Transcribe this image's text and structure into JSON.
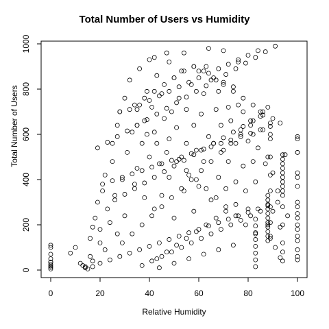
{
  "chart_data": {
    "type": "scatter",
    "title": "Total Number of Users vs Humidity",
    "xlabel": "Relative Humidity",
    "ylabel": "Total Number of Users",
    "xlim": [
      0,
      100
    ],
    "ylim": [
      0,
      1000
    ],
    "xticks": [
      0,
      20,
      40,
      60,
      80,
      100
    ],
    "yticks": [
      0,
      200,
      400,
      600,
      800,
      1000
    ],
    "grid": false,
    "marker": "open-circle",
    "point_color": "#000000",
    "series": [
      {
        "x": [
          0,
          0,
          0,
          0,
          0,
          0,
          8,
          10,
          12,
          13,
          14,
          15,
          16,
          16,
          17,
          17,
          18,
          19,
          20,
          20,
          21,
          22,
          22,
          23,
          24,
          25,
          25,
          26,
          27,
          27,
          28,
          29,
          30,
          30,
          31,
          32,
          33,
          34,
          35,
          35,
          36,
          37,
          38,
          38,
          39,
          40,
          40,
          41,
          42,
          42,
          43,
          44,
          45,
          45,
          46,
          47,
          48,
          48,
          49,
          50,
          50,
          51,
          52,
          52,
          53,
          54,
          55,
          55,
          56,
          57,
          58,
          58,
          59,
          60,
          60,
          61,
          62,
          62,
          63,
          64,
          65,
          65,
          66,
          67,
          68,
          68,
          69,
          70,
          70,
          71,
          72,
          72,
          73,
          74,
          75,
          75,
          76,
          77,
          78,
          78,
          79,
          80,
          80,
          81,
          82,
          82,
          83,
          84,
          85,
          85,
          86,
          87,
          88,
          88,
          88,
          88,
          89,
          89,
          90,
          90,
          91,
          92,
          93,
          93,
          94,
          94,
          94,
          94,
          94,
          95,
          96,
          100,
          100,
          100,
          100,
          100,
          100,
          100,
          100,
          100,
          100,
          14,
          17,
          20,
          24,
          28,
          32,
          36,
          40,
          44,
          48,
          52,
          56,
          60,
          64,
          68,
          72,
          76,
          80,
          84,
          88,
          92,
          26,
          30,
          34,
          38,
          42,
          46,
          50,
          54,
          58,
          62,
          66,
          70,
          74,
          78,
          82,
          86,
          19,
          23,
          27,
          31,
          35,
          39,
          43,
          47,
          51,
          55,
          59,
          63,
          67,
          71,
          75,
          79,
          83,
          87,
          91,
          21,
          25,
          29,
          33,
          37,
          41,
          45,
          49,
          53,
          57,
          61,
          65,
          69,
          73,
          77,
          81,
          85,
          89,
          93,
          29,
          33,
          37,
          41,
          45,
          49,
          53,
          57,
          61,
          65,
          69,
          73,
          77,
          81,
          85,
          35,
          39,
          43,
          47,
          51,
          55,
          59,
          63,
          67,
          71,
          75,
          79,
          83,
          37,
          41,
          45,
          49,
          53,
          57,
          61,
          65,
          69,
          73,
          77,
          81,
          32,
          36,
          40,
          44,
          48,
          52,
          56,
          60,
          64,
          68,
          72,
          76,
          80,
          84,
          28,
          34,
          38,
          42,
          46,
          50,
          54,
          58,
          62,
          66,
          70,
          74,
          78,
          82,
          86,
          90,
          43,
          47,
          51,
          55,
          59,
          63,
          67,
          71,
          75,
          42,
          48,
          54,
          58,
          64,
          70,
          76,
          44,
          50,
          56,
          62,
          68,
          74,
          88,
          88,
          88,
          88,
          88,
          88,
          88,
          88,
          88,
          88,
          94,
          94,
          94,
          94,
          94,
          94,
          94,
          94,
          94,
          94,
          83,
          83,
          83,
          83,
          83,
          83,
          83,
          83,
          100,
          100,
          100,
          100,
          100,
          100,
          100,
          100,
          89,
          89,
          89,
          89,
          89,
          89,
          89,
          89,
          0,
          0,
          0,
          0
        ],
        "y": [
          5,
          12,
          18,
          25,
          35,
          110,
          75,
          100,
          30,
          20,
          10,
          5,
          140,
          60,
          190,
          40,
          230,
          300,
          120,
          180,
          350,
          90,
          420,
          270,
          210,
          480,
          560,
          330,
          640,
          160,
          700,
          400,
          240,
          760,
          520,
          840,
          610,
          380,
          710,
          450,
          890,
          560,
          660,
          320,
          790,
          500,
          930,
          720,
          610,
          270,
          860,
          470,
          780,
          330,
          670,
          960,
          580,
          410,
          700,
          850,
          230,
          630,
          760,
          490,
          880,
          350,
          560,
          710,
          420,
          820,
          640,
          260,
          530,
          880,
          370,
          690,
          780,
          480,
          900,
          590,
          310,
          840,
          560,
          710,
          410,
          790,
          640,
          530,
          830,
          360,
          720,
          480,
          660,
          810,
          560,
          390,
          730,
          620,
          460,
          700,
          350,
          570,
          270,
          660,
          480,
          600,
          390,
          540,
          700,
          260,
          620,
          470,
          720,
          500,
          330,
          200,
          600,
          150,
          430,
          260,
          100,
          350,
          190,
          55,
          280,
          120,
          40,
          200,
          80,
          510,
          240,
          60,
          590,
          520,
          410,
          300,
          250,
          200,
          150,
          90,
          45,
          15,
          15,
          30,
          45,
          60,
          75,
          90,
          105,
          120,
          135,
          150,
          165,
          180,
          195,
          210,
          225,
          240,
          255,
          270,
          285,
          300,
          310,
          335,
          360,
          385,
          410,
          435,
          460,
          485,
          510,
          535,
          560,
          585,
          610,
          635,
          660,
          685,
          540,
          565,
          590,
          615,
          640,
          665,
          690,
          715,
          740,
          765,
          790,
          815,
          840,
          865,
          890,
          915,
          940,
          965,
          990,
          380,
          395,
          410,
          425,
          440,
          455,
          470,
          485,
          500,
          515,
          530,
          545,
          560,
          575,
          590,
          605,
          620,
          635,
          650,
          120,
          160,
          200,
          240,
          280,
          320,
          360,
          400,
          440,
          480,
          520,
          560,
          600,
          640,
          680,
          640,
          600,
          560,
          520,
          480,
          440,
          400,
          360,
          320,
          280,
          240,
          200,
          160,
          20,
          40,
          60,
          80,
          100,
          120,
          140,
          160,
          180,
          200,
          220,
          240,
          710,
          730,
          750,
          770,
          790,
          810,
          830,
          850,
          870,
          890,
          910,
          930,
          950,
          970,
          700,
          730,
          760,
          790,
          820,
          850,
          880,
          900,
          880,
          850,
          820,
          790,
          760,
          730,
          700,
          670,
          50,
          80,
          110,
          140,
          170,
          200,
          230,
          260,
          290,
          940,
          920,
          960,
          900,
          980,
          970,
          920,
          10,
          30,
          50,
          70,
          90,
          110,
          130,
          150,
          170,
          190,
          210,
          230,
          250,
          270,
          290,
          310,
          330,
          350,
          370,
          390,
          410,
          430,
          450,
          470,
          490,
          510,
          15,
          45,
          75,
          105,
          135,
          165,
          195,
          225,
          580,
          520,
          430,
          370,
          280,
          230,
          180,
          130,
          650,
          580,
          500,
          420,
          350,
          280,
          210,
          140,
          70,
          100,
          35,
          50
        ]
      }
    ]
  }
}
